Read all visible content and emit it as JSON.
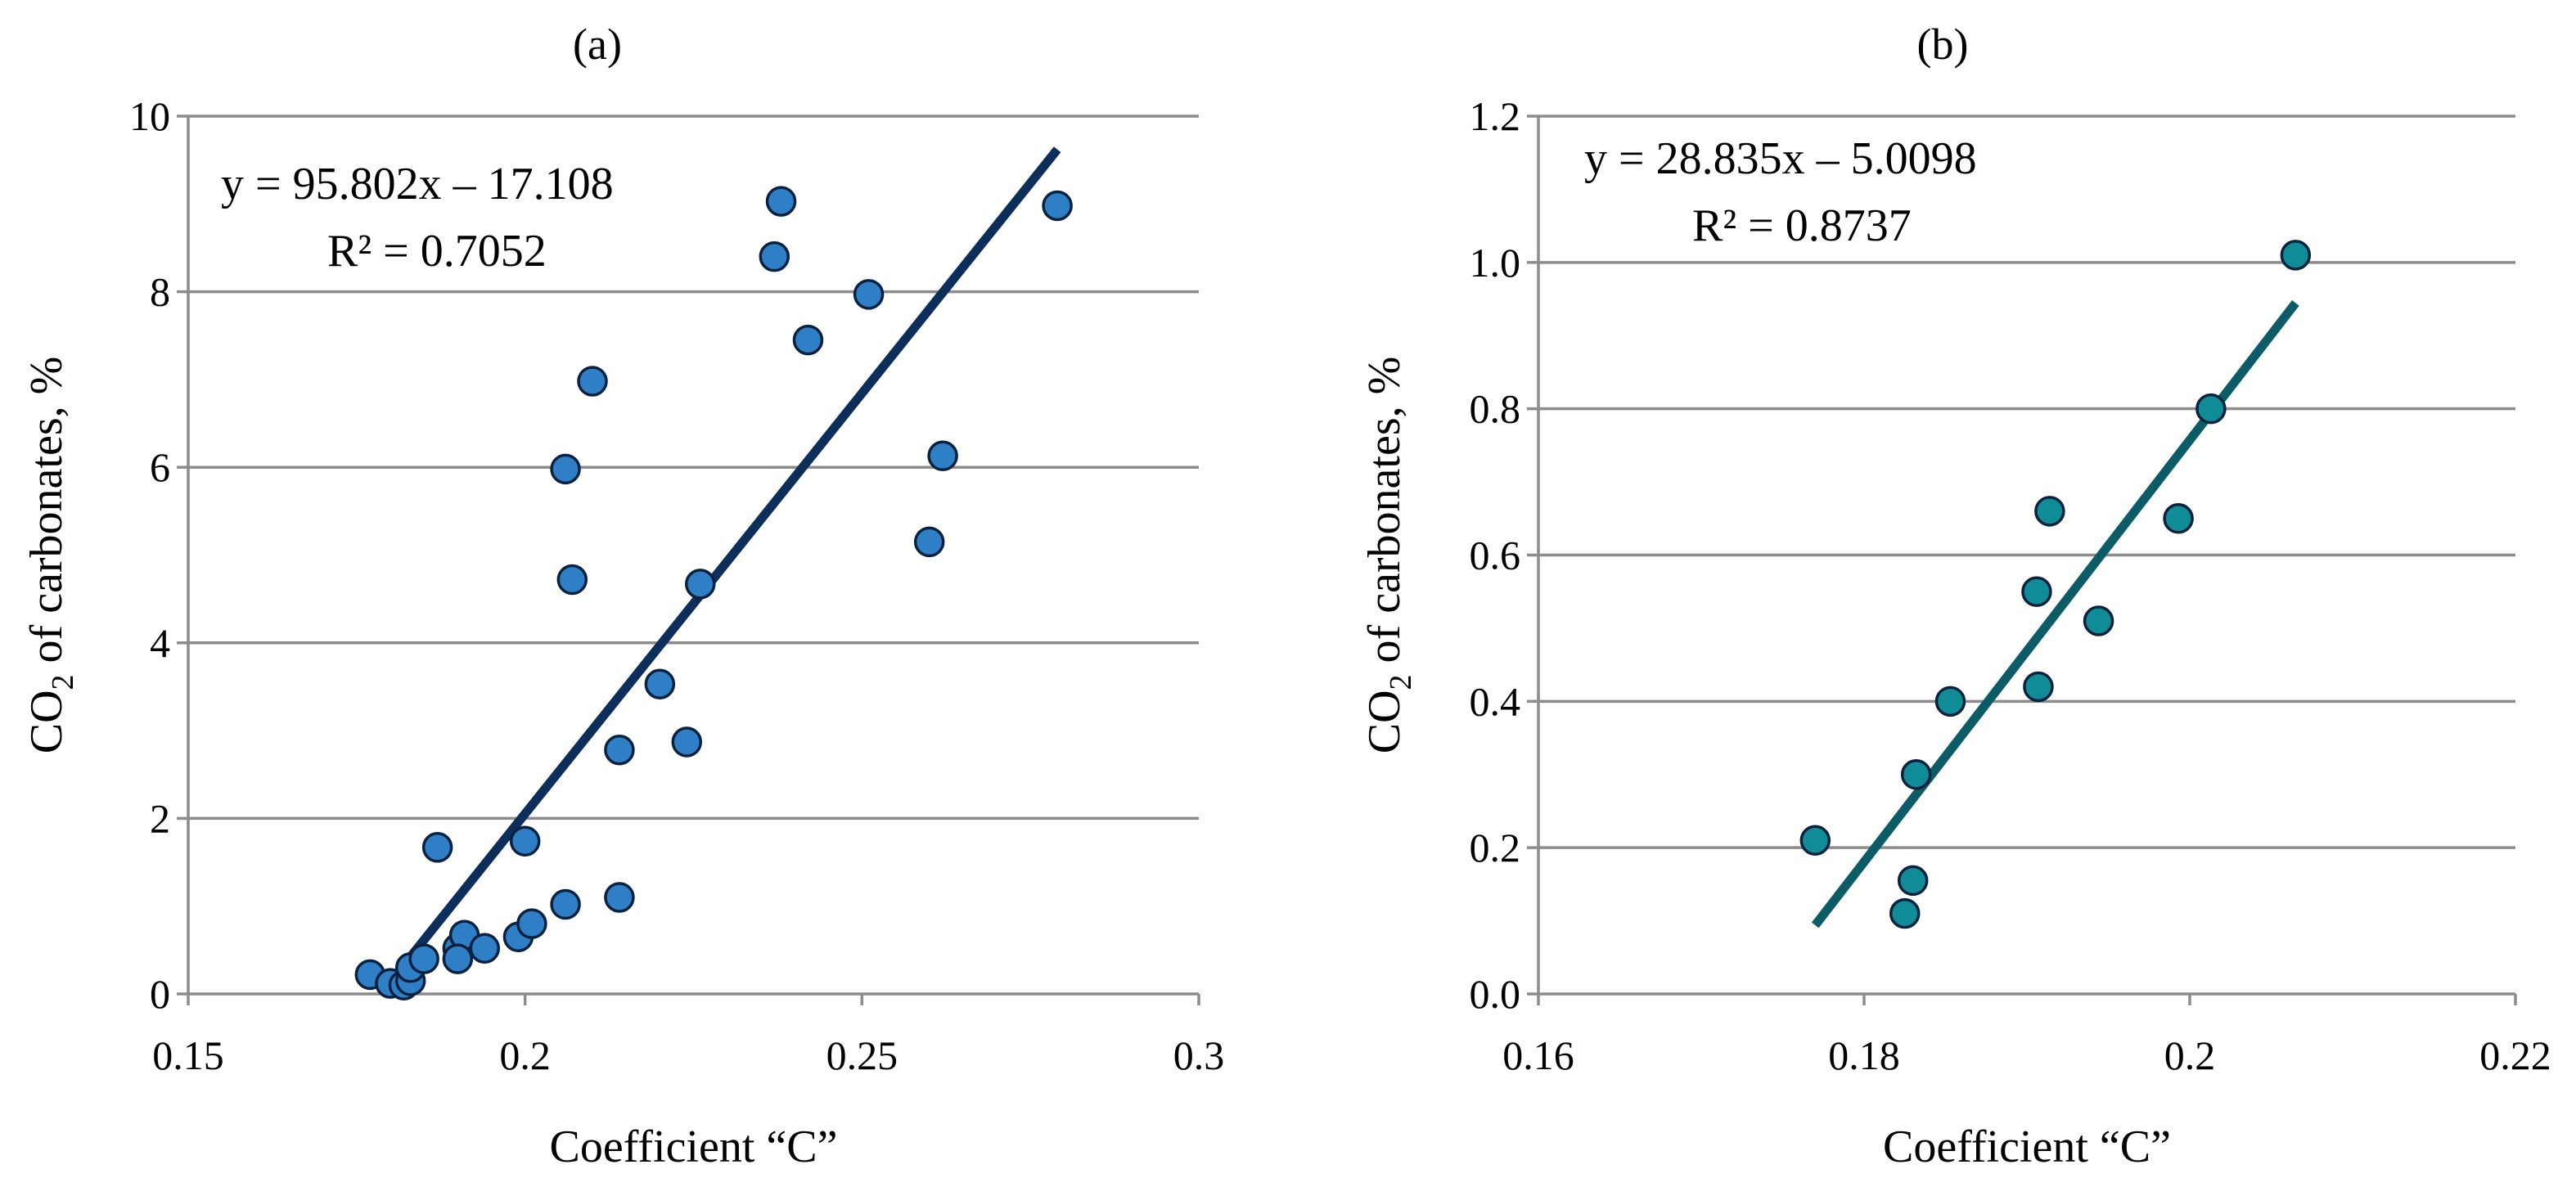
{
  "chart_data": [
    {
      "type": "scatter",
      "panel_label": "(a)",
      "xlabel": "Coefficient “C”",
      "ylabel_main": "CO",
      "ylabel_sub": "2",
      "ylabel_rest": " of carbonates, %",
      "xlim": [
        0.15,
        0.3
      ],
      "ylim": [
        0,
        10
      ],
      "x_ticks": [
        0.15,
        0.2,
        0.25,
        0.3
      ],
      "x_tick_labels": [
        "0.15",
        "0.2",
        "0.25",
        "0.3"
      ],
      "y_ticks": [
        0,
        2,
        4,
        6,
        8,
        10
      ],
      "y_tick_labels": [
        "0",
        "2",
        "4",
        "6",
        "8",
        "10"
      ],
      "grid": "horizontal",
      "equation": "y = 95.802x – 17.108",
      "r_squared": "R² = 0.7052",
      "trendline": {
        "slope": 95.802,
        "intercept": -17.108,
        "x_range": [
          0.18,
          0.279
        ]
      },
      "marker_color": "#2e7fc6",
      "line_color": "#0d2e5a",
      "points": [
        [
          0.177,
          0.22
        ],
        [
          0.18,
          0.12
        ],
        [
          0.182,
          0.1
        ],
        [
          0.183,
          0.15
        ],
        [
          0.183,
          0.3
        ],
        [
          0.185,
          0.4
        ],
        [
          0.187,
          1.67
        ],
        [
          0.19,
          0.52
        ],
        [
          0.191,
          0.67
        ],
        [
          0.19,
          0.4
        ],
        [
          0.194,
          0.52
        ],
        [
          0.199,
          0.65
        ],
        [
          0.2,
          1.74
        ],
        [
          0.201,
          0.8
        ],
        [
          0.206,
          1.02
        ],
        [
          0.206,
          5.98
        ],
        [
          0.207,
          4.72
        ],
        [
          0.21,
          6.98
        ],
        [
          0.214,
          1.1
        ],
        [
          0.214,
          2.78
        ],
        [
          0.22,
          3.53
        ],
        [
          0.224,
          2.87
        ],
        [
          0.226,
          4.67
        ],
        [
          0.237,
          8.4
        ],
        [
          0.238,
          9.03
        ],
        [
          0.242,
          7.45
        ],
        [
          0.251,
          7.97
        ],
        [
          0.26,
          5.15
        ],
        [
          0.262,
          6.13
        ],
        [
          0.279,
          8.98
        ]
      ]
    },
    {
      "type": "scatter",
      "panel_label": "(b)",
      "xlabel": "Coefficient “C”",
      "ylabel_main": "CO",
      "ylabel_sub": "2",
      "ylabel_rest": " of carbonates, %",
      "xlim": [
        0.16,
        0.22
      ],
      "ylim": [
        0,
        1.2
      ],
      "x_ticks": [
        0.16,
        0.18,
        0.2,
        0.22
      ],
      "x_tick_labels": [
        "0.16",
        "0.18",
        "0.2",
        "0.22"
      ],
      "y_ticks": [
        0,
        0.2,
        0.4,
        0.6,
        0.8,
        1.0,
        1.2
      ],
      "y_tick_labels": [
        "0.0",
        "0.2",
        "0.4",
        "0.6",
        "0.8",
        "1.0",
        "1.2"
      ],
      "grid": "horizontal",
      "equation": "y = 28.835x – 5.0098",
      "r_squared": "R² = 0.8737",
      "trendline": {
        "slope": 28.835,
        "intercept": -5.0098,
        "x_range": [
          0.177,
          0.2065
        ]
      },
      "marker_color": "#0f8c96",
      "line_color": "#0b5c66",
      "points": [
        [
          0.177,
          0.21
        ],
        [
          0.1825,
          0.11
        ],
        [
          0.183,
          0.155
        ],
        [
          0.1832,
          0.3
        ],
        [
          0.1853,
          0.4
        ],
        [
          0.1906,
          0.55
        ],
        [
          0.1907,
          0.42
        ],
        [
          0.1914,
          0.66
        ],
        [
          0.1944,
          0.51
        ],
        [
          0.1993,
          0.65
        ],
        [
          0.2013,
          0.8
        ],
        [
          0.2065,
          1.01
        ]
      ]
    }
  ]
}
